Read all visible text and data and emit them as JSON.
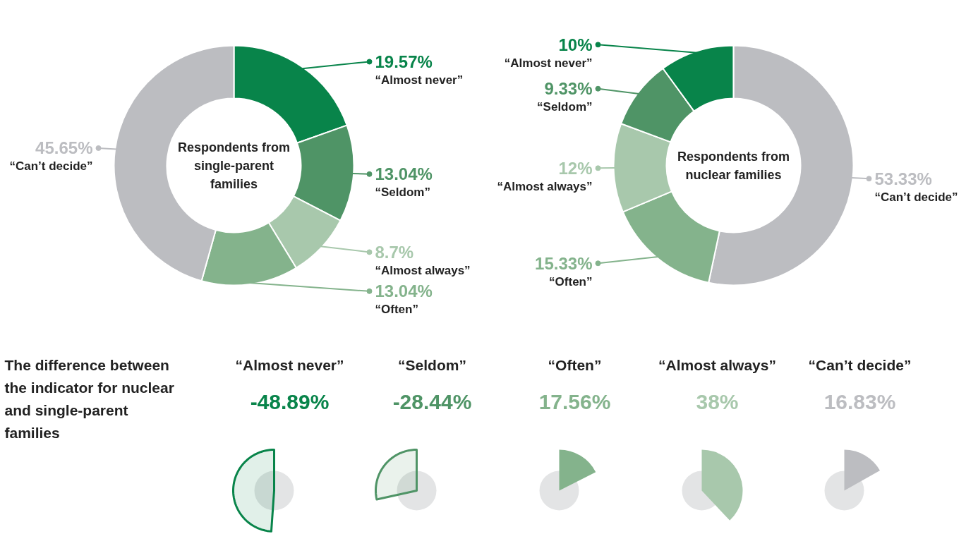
{
  "chart_data": [
    {
      "type": "donut",
      "title": "Respondents from single-parent families",
      "categories": [
        "“Almost never”",
        "“Seldom”",
        "“Almost always”",
        "“Often”",
        "“Can’t decide”"
      ],
      "values": [
        19.57,
        13.04,
        8.7,
        13.04,
        45.65
      ],
      "colors": [
        "#08844a",
        "#4f9466",
        "#a8c8ac",
        "#84b38c",
        "#bcbdc1"
      ],
      "value_labels": [
        "19.57%",
        "13.04%",
        "8.7%",
        "13.04%",
        "45.65%"
      ],
      "legend": "right"
    },
    {
      "type": "donut",
      "title": "Respondents from nuclear families",
      "categories": [
        "“Can’t decide”",
        "“Often”",
        "“Almost always”",
        "“Seldom”",
        "“Almost never”"
      ],
      "values": [
        53.33,
        15.33,
        12,
        9.33,
        10
      ],
      "colors": [
        "#bcbdc1",
        "#84b38c",
        "#a8c8ac",
        "#4f9466",
        "#08844a"
      ],
      "value_labels": [
        "53.33%",
        "15.33%",
        "12%",
        "9.33%",
        "10%"
      ],
      "legend": "left"
    },
    {
      "type": "other",
      "title": "The difference between the indicator for nuclear and single-parent families",
      "categories": [
        "“Almost never”",
        "“Seldom”",
        "“Often”",
        "“Almost always”",
        "“Can’t decide”"
      ],
      "values": [
        -48.89,
        -28.44,
        17.56,
        38,
        16.83
      ],
      "colors": [
        "#08844a",
        "#4f9466",
        "#84b38c",
        "#a8c8ac",
        "#bcbdc1"
      ],
      "value_labels": [
        "-48.89%",
        "-28.44%",
        "17.56%",
        "38%",
        "16.83%"
      ]
    }
  ]
}
